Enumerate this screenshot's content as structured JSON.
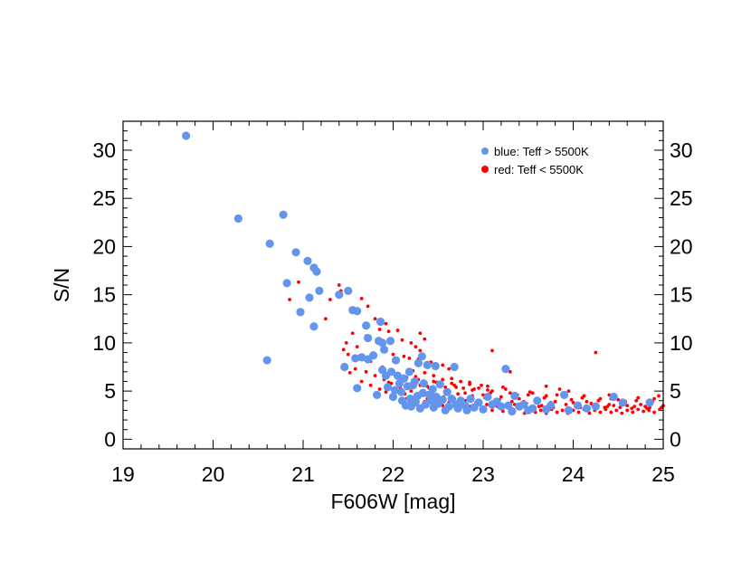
{
  "chart_data": {
    "type": "scatter",
    "title": "",
    "xlabel": "F606W [mag]",
    "ylabel": "S/N",
    "xlim": [
      19,
      25
    ],
    "ylim": [
      -1,
      33
    ],
    "x_ticks": [
      19,
      20,
      21,
      22,
      23,
      24,
      25
    ],
    "y_ticks": [
      0,
      5,
      10,
      15,
      20,
      25,
      30
    ],
    "grid": false,
    "legend_position": "top-right",
    "series": [
      {
        "name": "blue: Teff > 5500K",
        "color": "#6495ED",
        "marker": "large-dot",
        "points": [
          [
            19.7,
            31.5
          ],
          [
            20.28,
            22.9
          ],
          [
            20.63,
            20.3
          ],
          [
            20.6,
            8.2
          ],
          [
            20.78,
            23.3
          ],
          [
            20.82,
            16.2
          ],
          [
            20.92,
            19.4
          ],
          [
            20.97,
            13.2
          ],
          [
            21.05,
            18.5
          ],
          [
            21.07,
            14.7
          ],
          [
            21.12,
            17.8
          ],
          [
            21.15,
            17.4
          ],
          [
            21.12,
            11.7
          ],
          [
            21.18,
            15.4
          ],
          [
            21.4,
            15.0
          ],
          [
            21.5,
            15.4
          ],
          [
            21.46,
            7.5
          ],
          [
            21.55,
            13.4
          ],
          [
            21.58,
            8.4
          ],
          [
            21.6,
            13.3
          ],
          [
            21.6,
            5.3
          ],
          [
            21.65,
            8.5
          ],
          [
            21.7,
            11.8
          ],
          [
            21.72,
            10.5
          ],
          [
            21.72,
            8.3
          ],
          [
            21.78,
            8.7
          ],
          [
            21.82,
            4.6
          ],
          [
            21.84,
            10.2
          ],
          [
            21.86,
            12.2
          ],
          [
            21.88,
            10.0
          ],
          [
            21.9,
            9.3
          ],
          [
            21.88,
            7.2
          ],
          [
            21.92,
            6.6
          ],
          [
            21.94,
            5.4
          ],
          [
            21.97,
            10.2
          ],
          [
            21.98,
            7.0
          ],
          [
            22.0,
            4.4
          ],
          [
            22.02,
            5.1
          ],
          [
            22.03,
            8.2
          ],
          [
            22.05,
            6.6
          ],
          [
            22.07,
            5.8
          ],
          [
            22.09,
            4.9
          ],
          [
            22.1,
            4.0
          ],
          [
            22.12,
            6.3
          ],
          [
            22.14,
            3.5
          ],
          [
            22.16,
            5.5
          ],
          [
            22.18,
            7.0
          ],
          [
            22.19,
            4.2
          ],
          [
            22.2,
            3.4
          ],
          [
            22.22,
            5.6
          ],
          [
            22.24,
            6.0
          ],
          [
            22.25,
            3.9
          ],
          [
            22.27,
            4.5
          ],
          [
            22.28,
            7.9
          ],
          [
            22.3,
            3.2
          ],
          [
            22.32,
            8.6
          ],
          [
            22.33,
            4.8
          ],
          [
            22.34,
            5.8
          ],
          [
            22.36,
            3.6
          ],
          [
            22.38,
            7.7
          ],
          [
            22.4,
            4.6
          ],
          [
            22.42,
            4.0
          ],
          [
            22.44,
            5.2
          ],
          [
            22.45,
            3.3
          ],
          [
            22.47,
            7.6
          ],
          [
            22.48,
            4.4
          ],
          [
            22.5,
            3.7
          ],
          [
            22.52,
            5.7
          ],
          [
            22.55,
            4.1
          ],
          [
            22.58,
            3.0
          ],
          [
            22.6,
            4.9
          ],
          [
            22.62,
            3.4
          ],
          [
            22.65,
            4.2
          ],
          [
            22.68,
            7.5
          ],
          [
            22.7,
            3.6
          ],
          [
            22.72,
            3.2
          ],
          [
            22.75,
            4.0
          ],
          [
            22.8,
            3.5
          ],
          [
            22.82,
            3.0
          ],
          [
            22.86,
            4.2
          ],
          [
            22.9,
            3.3
          ],
          [
            22.95,
            3.8
          ],
          [
            23.0,
            3.1
          ],
          [
            23.05,
            4.4
          ],
          [
            23.1,
            3.6
          ],
          [
            23.15,
            3.9
          ],
          [
            23.2,
            3.4
          ],
          [
            23.25,
            7.3
          ],
          [
            23.28,
            3.5
          ],
          [
            23.32,
            2.9
          ],
          [
            23.35,
            4.5
          ],
          [
            23.4,
            3.4
          ],
          [
            23.45,
            3.6
          ],
          [
            23.5,
            3.0
          ],
          [
            23.55,
            3.2
          ],
          [
            23.6,
            4.0
          ],
          [
            23.7,
            3.1
          ],
          [
            23.75,
            3.5
          ],
          [
            23.9,
            4.6
          ],
          [
            23.95,
            3.0
          ],
          [
            24.05,
            3.5
          ],
          [
            24.15,
            3.2
          ],
          [
            24.25,
            3.4
          ],
          [
            24.45,
            4.4
          ],
          [
            24.55,
            3.8
          ],
          [
            24.85,
            3.8
          ]
        ]
      },
      {
        "name": "red: Teff < 5500K",
        "color": "#FF0000",
        "marker": "small-dot",
        "points": [
          [
            20.95,
            16.3
          ],
          [
            20.85,
            14.5
          ],
          [
            21.4,
            16.0
          ],
          [
            21.42,
            15.4
          ],
          [
            21.3,
            14.5
          ],
          [
            21.25,
            12.5
          ],
          [
            21.65,
            14.6
          ],
          [
            21.72,
            13.8
          ],
          [
            21.8,
            12.5
          ],
          [
            21.85,
            11.4
          ],
          [
            21.95,
            11.2
          ],
          [
            21.55,
            11.0
          ],
          [
            21.7,
            10.7
          ],
          [
            21.48,
            10.0
          ],
          [
            21.6,
            9.6
          ],
          [
            21.92,
            12.0
          ],
          [
            22.05,
            11.3
          ],
          [
            22.3,
            11.0
          ],
          [
            22.35,
            10.4
          ],
          [
            22.1,
            10.3
          ],
          [
            22.2,
            10.0
          ],
          [
            22.25,
            9.6
          ],
          [
            22.3,
            9.2
          ],
          [
            21.45,
            9.3
          ],
          [
            21.5,
            8.8
          ],
          [
            21.6,
            8.4
          ],
          [
            21.75,
            8.1
          ],
          [
            21.88,
            7.5
          ],
          [
            22.0,
            8.8
          ],
          [
            22.12,
            8.6
          ],
          [
            22.18,
            8.4
          ],
          [
            22.28,
            8.3
          ],
          [
            22.42,
            8.0
          ],
          [
            22.55,
            7.7
          ],
          [
            22.62,
            7.3
          ],
          [
            21.52,
            6.9
          ],
          [
            21.58,
            7.3
          ],
          [
            21.7,
            7.0
          ],
          [
            21.8,
            6.6
          ],
          [
            21.9,
            6.2
          ],
          [
            21.95,
            5.9
          ],
          [
            22.05,
            6.7
          ],
          [
            22.15,
            6.4
          ],
          [
            22.22,
            7.1
          ],
          [
            22.35,
            6.9
          ],
          [
            22.45,
            6.6
          ],
          [
            22.55,
            6.2
          ],
          [
            22.65,
            5.8
          ],
          [
            22.75,
            6.0
          ],
          [
            22.85,
            5.7
          ],
          [
            22.95,
            5.3
          ],
          [
            23.05,
            5.1
          ],
          [
            23.1,
            9.2
          ],
          [
            23.3,
            7.0
          ],
          [
            24.25,
            9.0
          ],
          [
            21.65,
            6.0
          ],
          [
            21.75,
            5.6
          ],
          [
            21.85,
            5.2
          ],
          [
            21.92,
            4.9
          ],
          [
            22.0,
            4.6
          ],
          [
            22.08,
            5.3
          ],
          [
            22.13,
            4.7
          ],
          [
            22.2,
            5.0
          ],
          [
            22.26,
            4.4
          ],
          [
            22.32,
            4.8
          ],
          [
            22.38,
            4.2
          ],
          [
            22.44,
            4.6
          ],
          [
            22.5,
            4.0
          ],
          [
            22.56,
            4.4
          ],
          [
            22.62,
            3.8
          ],
          [
            22.68,
            4.2
          ],
          [
            22.74,
            3.6
          ],
          [
            22.8,
            4.0
          ],
          [
            22.86,
            3.4
          ],
          [
            22.92,
            3.8
          ],
          [
            22.98,
            3.2
          ],
          [
            23.04,
            3.6
          ],
          [
            23.1,
            3.0
          ],
          [
            23.16,
            3.4
          ],
          [
            23.22,
            2.9
          ],
          [
            23.28,
            3.3
          ],
          [
            23.34,
            2.8
          ],
          [
            23.4,
            3.2
          ],
          [
            23.46,
            2.7
          ],
          [
            23.52,
            3.1
          ],
          [
            23.58,
            2.8
          ],
          [
            23.64,
            3.0
          ],
          [
            23.7,
            2.7
          ],
          [
            23.76,
            3.1
          ],
          [
            23.82,
            2.8
          ],
          [
            23.88,
            3.0
          ],
          [
            23.94,
            2.7
          ],
          [
            24.0,
            3.0
          ],
          [
            24.06,
            2.8
          ],
          [
            24.12,
            3.1
          ],
          [
            24.18,
            2.7
          ],
          [
            24.24,
            3.0
          ],
          [
            24.3,
            2.8
          ],
          [
            24.36,
            3.1
          ],
          [
            24.42,
            2.8
          ],
          [
            24.48,
            3.0
          ],
          [
            24.54,
            2.7
          ],
          [
            24.6,
            3.0
          ],
          [
            24.66,
            2.8
          ],
          [
            24.72,
            3.1
          ],
          [
            24.78,
            2.9
          ],
          [
            24.84,
            3.0
          ],
          [
            24.9,
            2.8
          ],
          [
            24.96,
            3.1
          ],
          [
            22.3,
            5.6
          ],
          [
            22.4,
            5.3
          ],
          [
            22.5,
            5.7
          ],
          [
            22.6,
            5.0
          ],
          [
            22.7,
            5.4
          ],
          [
            22.8,
            4.8
          ],
          [
            22.9,
            5.2
          ],
          [
            23.0,
            4.6
          ],
          [
            23.1,
            5.0
          ],
          [
            23.2,
            4.4
          ],
          [
            23.3,
            4.8
          ],
          [
            23.4,
            4.2
          ],
          [
            23.5,
            4.6
          ],
          [
            23.6,
            4.0
          ],
          [
            23.7,
            4.5
          ],
          [
            23.8,
            3.9
          ],
          [
            23.9,
            4.4
          ],
          [
            24.0,
            3.8
          ],
          [
            24.1,
            4.3
          ],
          [
            24.2,
            3.7
          ],
          [
            24.3,
            4.2
          ],
          [
            24.4,
            3.6
          ],
          [
            24.5,
            4.1
          ],
          [
            24.6,
            3.5
          ],
          [
            24.7,
            4.0
          ],
          [
            24.8,
            3.4
          ],
          [
            24.9,
            4.2
          ],
          [
            25.0,
            3.5
          ],
          [
            23.7,
            5.5
          ],
          [
            23.85,
            5.2
          ],
          [
            24.4,
            4.6
          ],
          [
            24.95,
            4.5
          ],
          [
            23.95,
            5.0
          ],
          [
            23.55,
            4.8
          ],
          [
            23.25,
            5.2
          ],
          [
            23.05,
            5.5
          ],
          [
            22.85,
            5.9
          ],
          [
            22.65,
            6.3
          ],
          [
            22.45,
            6.0
          ],
          [
            22.25,
            6.5
          ],
          [
            22.55,
            3.5
          ],
          [
            22.45,
            3.2
          ],
          [
            22.35,
            3.9
          ],
          [
            22.25,
            3.6
          ],
          [
            22.15,
            4.2
          ],
          [
            23.15,
            3.7
          ],
          [
            23.35,
            3.6
          ],
          [
            23.45,
            3.9
          ],
          [
            23.65,
            3.5
          ],
          [
            23.75,
            3.8
          ],
          [
            24.05,
            3.4
          ],
          [
            24.15,
            3.9
          ],
          [
            24.35,
            3.3
          ],
          [
            24.45,
            3.5
          ],
          [
            24.65,
            3.2
          ],
          [
            24.75,
            3.6
          ],
          [
            24.85,
            3.3
          ],
          [
            22.58,
            4.9
          ],
          [
            22.72,
            4.7
          ],
          [
            22.88,
            4.5
          ],
          [
            23.02,
            4.3
          ],
          [
            23.18,
            4.1
          ],
          [
            23.32,
            3.9
          ],
          [
            23.48,
            3.7
          ],
          [
            23.62,
            3.4
          ],
          [
            23.78,
            3.3
          ],
          [
            23.92,
            3.6
          ],
          [
            24.08,
            3.3
          ],
          [
            24.22,
            3.5
          ],
          [
            24.38,
            3.4
          ],
          [
            24.52,
            3.3
          ],
          [
            24.68,
            3.4
          ],
          [
            24.82,
            3.2
          ],
          [
            24.98,
            3.3
          ],
          [
            21.98,
            5.8
          ],
          [
            22.08,
            6.1
          ],
          [
            22.18,
            5.7
          ],
          [
            22.28,
            6.2
          ],
          [
            22.38,
            5.5
          ],
          [
            22.48,
            5.9
          ],
          [
            22.58,
            5.4
          ],
          [
            22.68,
            5.6
          ],
          [
            22.78,
            5.3
          ],
          [
            22.88,
            5.1
          ],
          [
            22.98,
            5.6
          ],
          [
            23.08,
            4.8
          ],
          [
            23.22,
            5.4
          ],
          [
            23.38,
            4.6
          ],
          [
            23.52,
            4.9
          ],
          [
            23.68,
            4.3
          ],
          [
            23.82,
            4.6
          ],
          [
            23.98,
            4.1
          ],
          [
            24.12,
            4.5
          ],
          [
            24.28,
            4.0
          ],
          [
            24.42,
            4.2
          ],
          [
            24.58,
            3.9
          ],
          [
            24.72,
            4.3
          ],
          [
            24.88,
            3.9
          ]
        ]
      }
    ]
  }
}
